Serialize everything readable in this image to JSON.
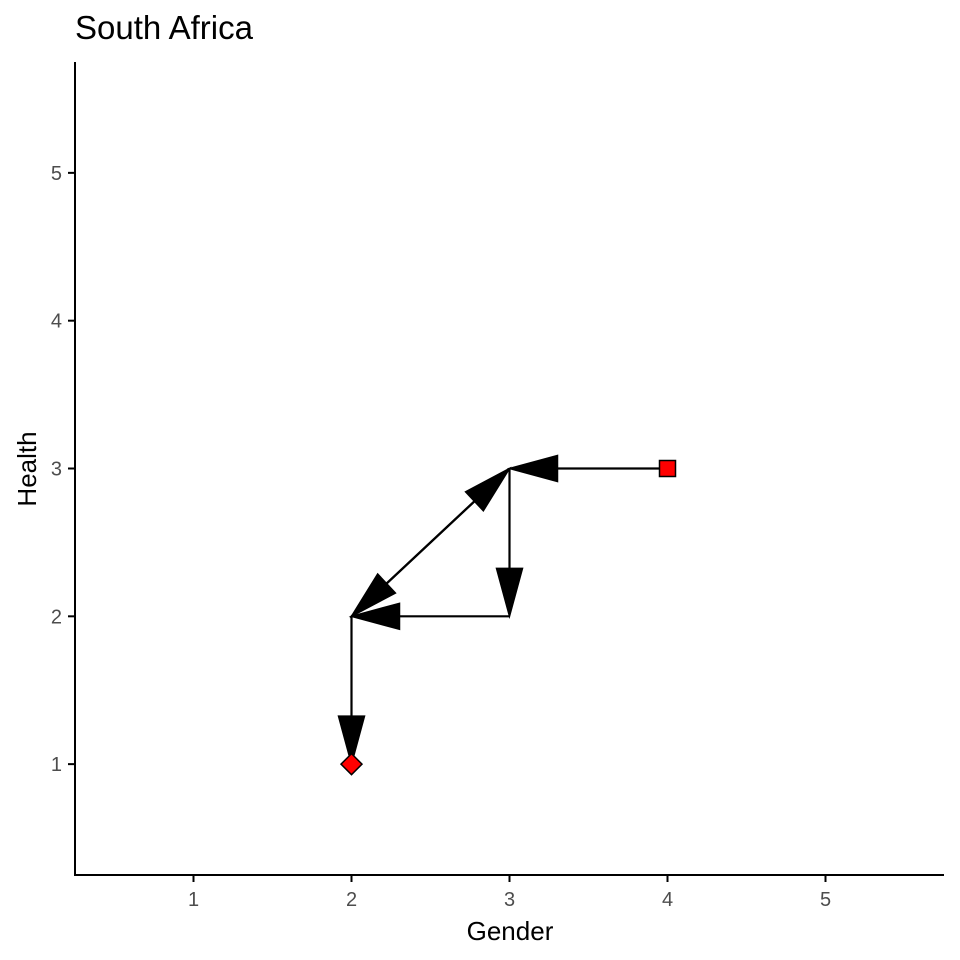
{
  "chart_data": {
    "type": "scatter",
    "title": "South Africa",
    "xlabel": "Gender",
    "ylabel": "Health",
    "xlim": [
      0.25,
      5.75
    ],
    "ylim": [
      0.25,
      5.75
    ],
    "xticks": [
      1,
      2,
      3,
      4,
      5
    ],
    "yticks": [
      1,
      2,
      3,
      4,
      5
    ],
    "grid": false,
    "legend": "none",
    "path": [
      {
        "x": 4,
        "y": 3
      },
      {
        "x": 3,
        "y": 3
      },
      {
        "x": 3,
        "y": 2
      },
      {
        "x": 2,
        "y": 2
      },
      {
        "x": 3,
        "y": 3
      },
      {
        "x": 2,
        "y": 2
      },
      {
        "x": 2,
        "y": 1
      }
    ],
    "start_point": {
      "x": 4,
      "y": 3,
      "shape": "square"
    },
    "end_point": {
      "x": 2,
      "y": 1,
      "shape": "diamond"
    },
    "colors": {
      "arrow": "#000000",
      "marker_fill": "#ff0000",
      "marker_stroke": "#000000",
      "axis": "#000000",
      "tick_label": "#4d4d4d"
    }
  }
}
